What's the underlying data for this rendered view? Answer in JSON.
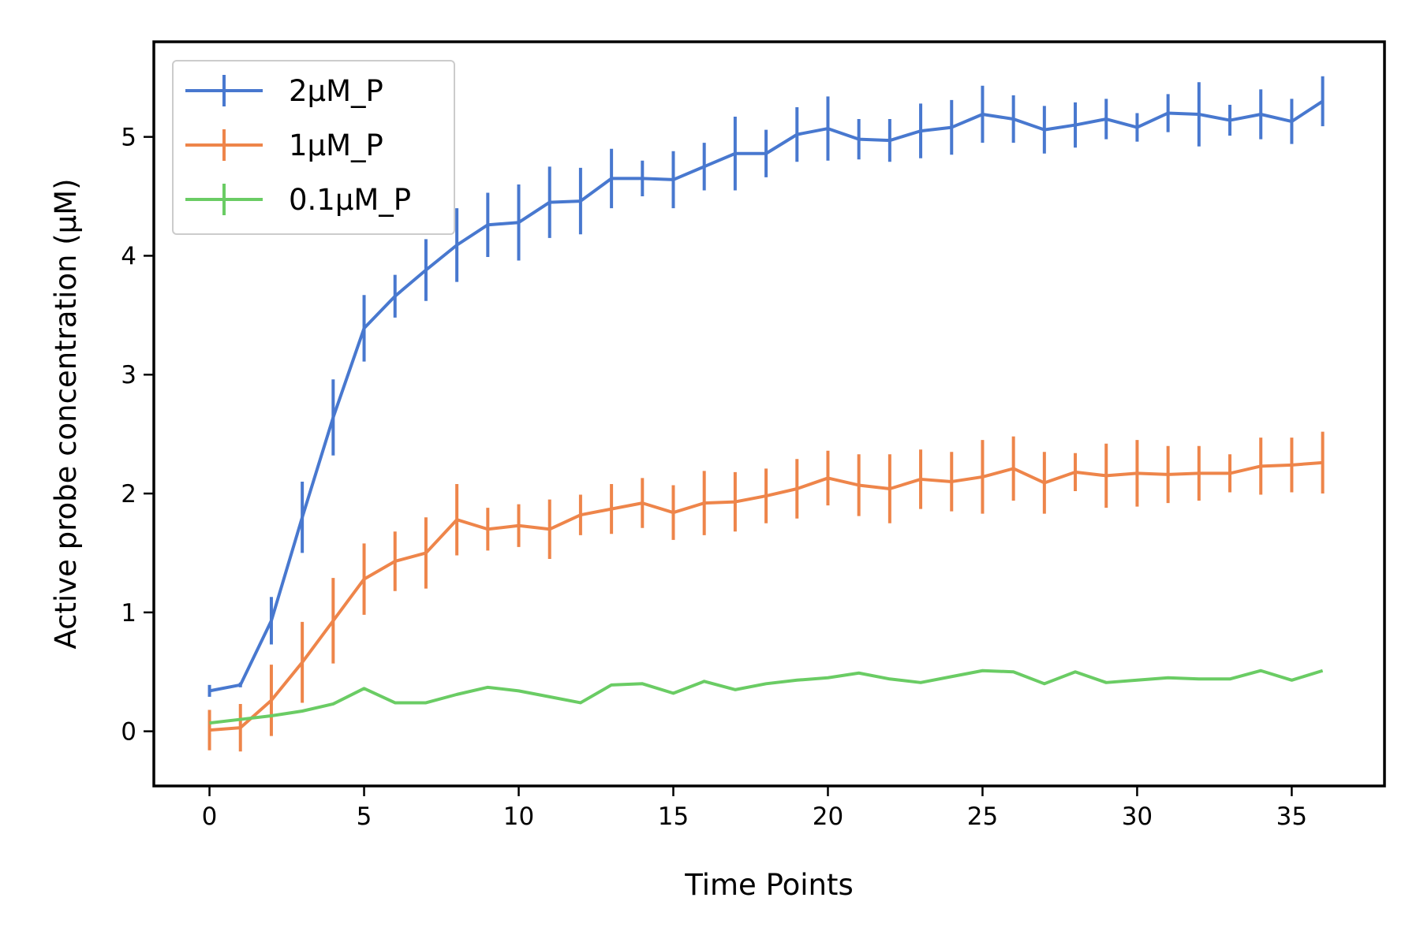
{
  "chart_data": {
    "type": "line",
    "title": "",
    "xlabel": "Time Points",
    "ylabel": "Active probe concentration (μM)",
    "xlim": [
      -1.8,
      38
    ],
    "ylim": [
      -0.46,
      5.8
    ],
    "xticks": [
      0,
      5,
      10,
      15,
      20,
      25,
      30,
      35
    ],
    "yticks": [
      0,
      1,
      2,
      3,
      4,
      5
    ],
    "grid": false,
    "legend_position": "top-left",
    "x": [
      0,
      1,
      2,
      3,
      4,
      5,
      6,
      7,
      8,
      9,
      10,
      11,
      12,
      13,
      14,
      15,
      16,
      17,
      18,
      19,
      20,
      21,
      22,
      23,
      24,
      25,
      26,
      27,
      28,
      29,
      30,
      31,
      32,
      33,
      34,
      35,
      36
    ],
    "series": [
      {
        "name": "2μM_P",
        "color": "#4878CF",
        "values": [
          0.34,
          0.39,
          0.93,
          1.8,
          2.64,
          3.39,
          3.66,
          3.88,
          4.09,
          4.26,
          4.28,
          4.45,
          4.46,
          4.65,
          4.65,
          4.64,
          4.75,
          4.86,
          4.86,
          5.02,
          5.07,
          4.98,
          4.97,
          5.05,
          5.08,
          5.19,
          5.15,
          5.06,
          5.1,
          5.15,
          5.08,
          5.2,
          5.19,
          5.14,
          5.19,
          5.13,
          5.3
        ],
        "errors": [
          0.05,
          0.02,
          0.2,
          0.3,
          0.32,
          0.28,
          0.18,
          0.26,
          0.31,
          0.27,
          0.32,
          0.3,
          0.28,
          0.25,
          0.15,
          0.24,
          0.2,
          0.31,
          0.2,
          0.23,
          0.27,
          0.17,
          0.18,
          0.23,
          0.23,
          0.24,
          0.2,
          0.2,
          0.19,
          0.17,
          0.12,
          0.16,
          0.27,
          0.13,
          0.21,
          0.19,
          0.21
        ]
      },
      {
        "name": "1μM_P",
        "color": "#EE854A",
        "values": [
          0.01,
          0.03,
          0.26,
          0.58,
          0.93,
          1.28,
          1.43,
          1.5,
          1.78,
          1.7,
          1.73,
          1.7,
          1.82,
          1.87,
          1.92,
          1.84,
          1.92,
          1.93,
          1.98,
          2.04,
          2.13,
          2.07,
          2.04,
          2.12,
          2.1,
          2.14,
          2.21,
          2.09,
          2.18,
          2.15,
          2.17,
          2.16,
          2.17,
          2.17,
          2.23,
          2.24,
          2.26
        ],
        "errors": [
          0.17,
          0.2,
          0.3,
          0.34,
          0.36,
          0.3,
          0.25,
          0.3,
          0.3,
          0.18,
          0.18,
          0.25,
          0.17,
          0.21,
          0.21,
          0.23,
          0.27,
          0.25,
          0.23,
          0.25,
          0.23,
          0.26,
          0.29,
          0.25,
          0.25,
          0.31,
          0.27,
          0.26,
          0.16,
          0.27,
          0.28,
          0.24,
          0.23,
          0.16,
          0.24,
          0.23,
          0.26
        ]
      },
      {
        "name": "0.1μM_P",
        "color": "#6ACC64",
        "values": [
          0.07,
          0.1,
          0.13,
          0.17,
          0.23,
          0.36,
          0.24,
          0.24,
          0.31,
          0.37,
          0.34,
          0.29,
          0.24,
          0.39,
          0.4,
          0.32,
          0.42,
          0.35,
          0.4,
          0.43,
          0.45,
          0.49,
          0.44,
          0.41,
          0.46,
          0.51,
          0.5,
          0.4,
          0.5,
          0.41,
          0.43,
          0.45,
          0.44,
          0.44,
          0.51,
          0.43,
          0.51
        ]
      }
    ]
  }
}
